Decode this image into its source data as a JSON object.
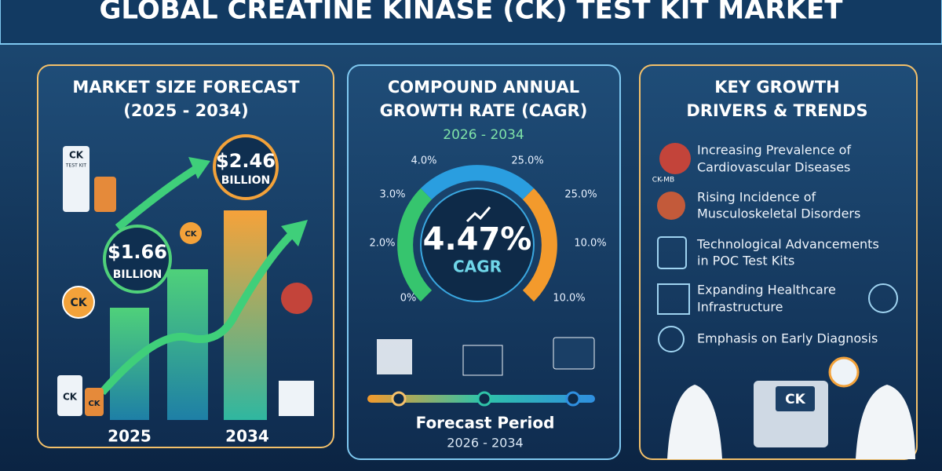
{
  "header": {
    "title": "GLOBAL CREATINE KINASE (CK) TEST KIT MARKET"
  },
  "market_size": {
    "title": "MARKET SIZE FORECAST",
    "period": "(2025 - 2034)",
    "start": {
      "amount": "$1.66",
      "unit": "BILLION",
      "year": "2025"
    },
    "end": {
      "amount": "$2.46",
      "unit": "BILLION",
      "year": "2034"
    },
    "icons": {
      "kit": "CK",
      "kit_caption": "TEST KIT",
      "badge_left": "CK",
      "badge_mid": "CK",
      "bottle_big": "CK",
      "bottle_small": "CK"
    }
  },
  "cagr": {
    "title_lines": [
      "COMPOUND ANNUAL",
      "GROWTH RATE (CAGR)"
    ],
    "period": "2026 - 2034",
    "gauge_labels_left": [
      "4.0%",
      "3.0%",
      "2.0%",
      "0%"
    ],
    "gauge_labels_right": [
      "25.0%",
      "25.0%",
      "10.0%",
      "10.0%"
    ],
    "value": "4.47%",
    "value_caption": "CAGR",
    "forecast_title": "Forecast Period",
    "forecast_period": "2026 - 2034"
  },
  "drivers": {
    "title_lines": [
      "KEY GROWTH",
      "DRIVERS & TRENDS"
    ],
    "items": [
      {
        "lines": [
          "Increasing Prevalence of",
          "Cardiovascular Diseases"
        ]
      },
      {
        "lines": [
          "Rising Incidence of",
          "Musculoskeletal Disorders"
        ]
      },
      {
        "lines": [
          "Technological Advancements",
          "in POC Test Kits"
        ]
      },
      {
        "lines": [
          "Expanding Healthcare",
          "Infrastructure"
        ]
      },
      {
        "lines": [
          "Emphasis on Early Diagnosis"
        ]
      }
    ],
    "heart_caption": "CK-MB",
    "machine_screen": "CK"
  }
}
